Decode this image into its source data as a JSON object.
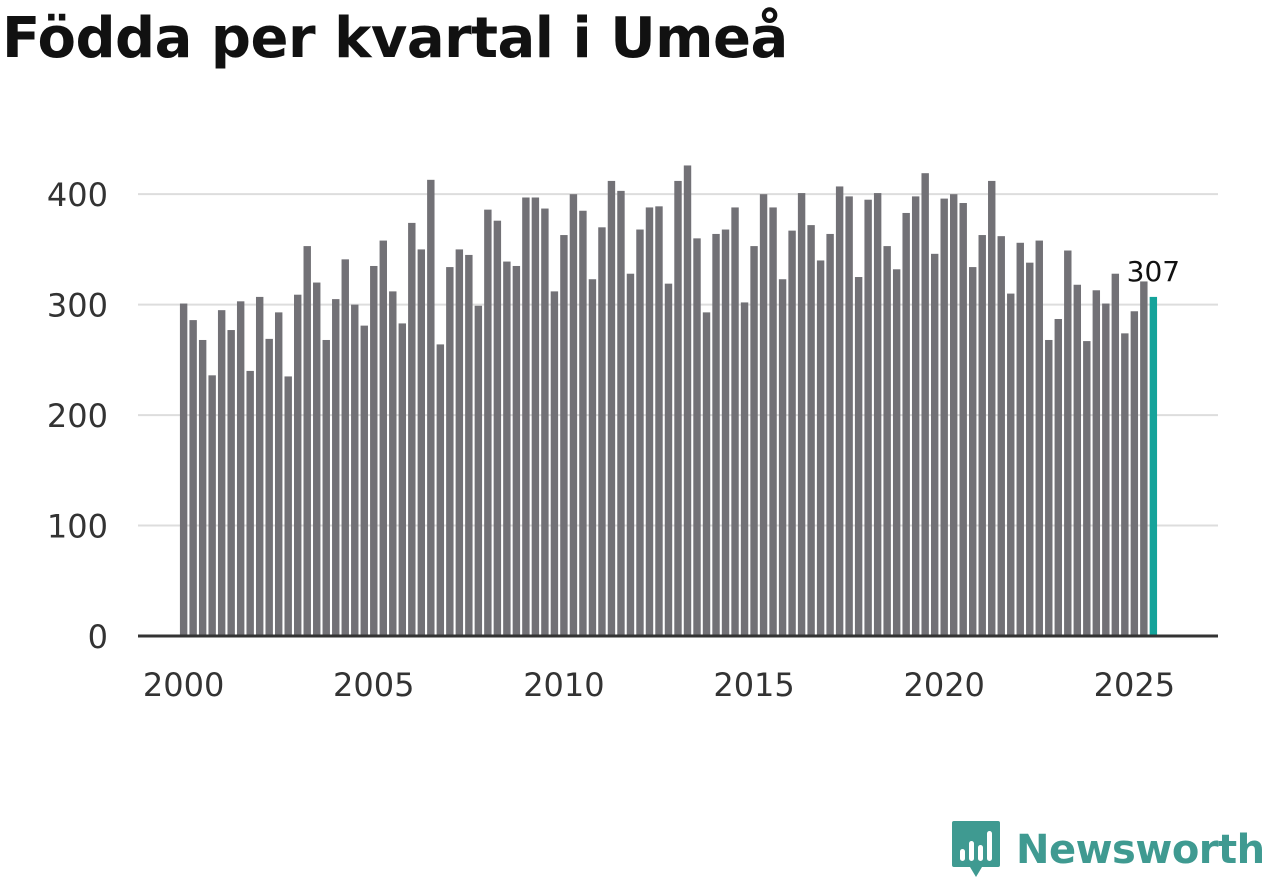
{
  "title": "Födda per kvartal i Umeå",
  "brand": {
    "name": "Newsworthy",
    "icon": "newsworthy-logo-icon",
    "color": "#3f9a91"
  },
  "colors": {
    "bar": "#727176",
    "highlight": "#14a39a",
    "grid": "#dddddd",
    "axis": "#333333"
  },
  "chart_data": {
    "type": "bar",
    "title": "Födda per kvartal i Umeå",
    "xlabel": "",
    "ylabel": "",
    "ylim": [
      0,
      440
    ],
    "yticks": [
      0,
      100,
      200,
      300,
      400
    ],
    "xticks": [
      2000,
      2005,
      2010,
      2015,
      2020,
      2025
    ],
    "xlim": [
      1998.8,
      2027.2
    ],
    "grid": true,
    "first_period": 2000,
    "periods_per_year": 4,
    "values": [
      301,
      286,
      268,
      236,
      295,
      277,
      303,
      240,
      307,
      269,
      293,
      235,
      309,
      353,
      320,
      268,
      305,
      341,
      300,
      281,
      335,
      358,
      312,
      283,
      374,
      350,
      413,
      264,
      334,
      350,
      345,
      299,
      386,
      376,
      339,
      335,
      397,
      397,
      387,
      312,
      363,
      400,
      385,
      323,
      370,
      412,
      403,
      328,
      368,
      388,
      389,
      319,
      412,
      426,
      360,
      293,
      364,
      368,
      388,
      302,
      353,
      400,
      388,
      323,
      367,
      401,
      372,
      340,
      364,
      407,
      398,
      325,
      395,
      401,
      353,
      332,
      383,
      398,
      419,
      346,
      396,
      400,
      392,
      334,
      363,
      412,
      362,
      310,
      356,
      338,
      358,
      268,
      287,
      349,
      318,
      267,
      313,
      301,
      328,
      274,
      294,
      321,
      307
    ],
    "highlight_last": true,
    "data_label": "307"
  }
}
